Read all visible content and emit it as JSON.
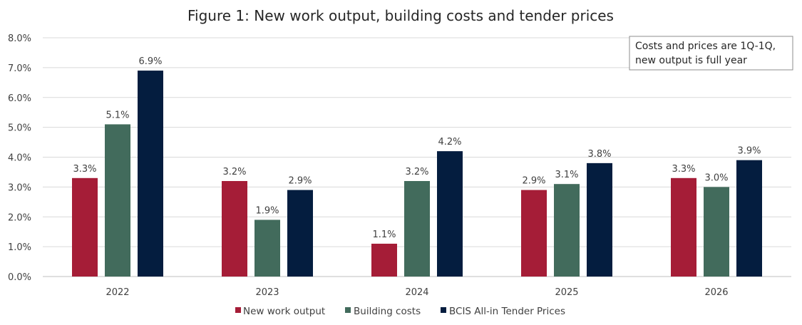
{
  "chart_data": {
    "type": "bar",
    "title": "Figure 1: New work output, building costs and tender prices",
    "categories": [
      "2022",
      "2023",
      "2024",
      "2025",
      "2026"
    ],
    "series": [
      {
        "name": "New work output",
        "color": "#a51d37",
        "values": [
          3.3,
          3.2,
          1.1,
          2.9,
          3.3
        ],
        "labels": [
          "3.3%",
          "3.2%",
          "1.1%",
          "2.9%",
          "3.3%"
        ]
      },
      {
        "name": "Building costs",
        "color": "#426b5c",
        "values": [
          5.1,
          1.9,
          3.2,
          3.1,
          3.0
        ],
        "labels": [
          "5.1%",
          "1.9%",
          "3.2%",
          "3.1%",
          "3.0%"
        ]
      },
      {
        "name": "BCIS All-in Tender Prices",
        "color": "#041d3f",
        "values": [
          6.9,
          2.9,
          4.2,
          3.8,
          3.9
        ],
        "labels": [
          "6.9%",
          "2.9%",
          "4.2%",
          "3.8%",
          "3.9%"
        ]
      }
    ],
    "ylim": [
      0,
      8
    ],
    "yticks": [
      0,
      1,
      2,
      3,
      4,
      5,
      6,
      7,
      8
    ],
    "ytick_labels": [
      "0.0%",
      "1.0%",
      "2.0%",
      "3.0%",
      "4.0%",
      "5.0%",
      "6.0%",
      "7.0%",
      "8.0%"
    ],
    "xlabel": "",
    "ylabel": "",
    "grid": true,
    "legend_position": "bottom-center",
    "annotation": {
      "lines": [
        "Costs and prices are 1Q-1Q,",
        "new output is full year"
      ],
      "position": "top-right"
    }
  }
}
